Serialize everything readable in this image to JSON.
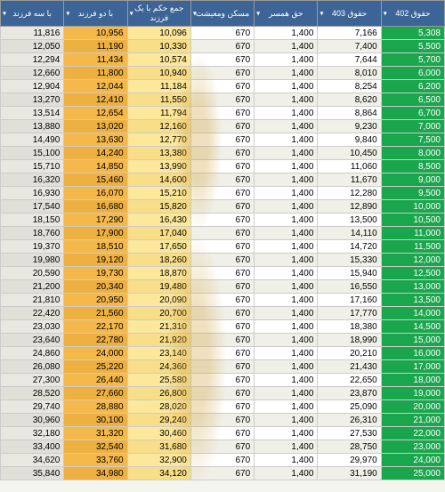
{
  "headers": [
    "حقوق 402",
    "حقوق 403",
    "حق همسر",
    "مسکن ومعیشت",
    "جمع حکم با یک فرزند",
    "با دو فرزند",
    "با سه فرزند"
  ],
  "colors": {
    "header_bg": "#3d6496",
    "header_fg": "#ffffff",
    "col1_bg": "#1aa64c",
    "col5_bg": "#fce79a",
    "col6_bg": "#f5b84a",
    "col7_bg": "#e8e8e0",
    "border": "#cccccc",
    "smudge": "#d4a84a"
  },
  "rows": [
    [
      "5,308",
      "7,166",
      "1,400",
      "670",
      "10,096",
      "10,956",
      "11,816"
    ],
    [
      "5,500",
      "7,400",
      "1,400",
      "670",
      "10,330",
      "11,190",
      "12,050"
    ],
    [
      "5,700",
      "7,644",
      "1,400",
      "670",
      "10,574",
      "11,434",
      "12,294"
    ],
    [
      "6,000",
      "8,010",
      "1,400",
      "670",
      "10,940",
      "11,800",
      "12,660"
    ],
    [
      "6,200",
      "8,254",
      "1,400",
      "670",
      "11,184",
      "12,044",
      "12,904"
    ],
    [
      "6,500",
      "8,620",
      "1,400",
      "670",
      "11,550",
      "12,410",
      "13,270"
    ],
    [
      "6,700",
      "8,864",
      "1,400",
      "670",
      "11,794",
      "12,654",
      "13,514"
    ],
    [
      "7,000",
      "9,230",
      "1,400",
      "670",
      "12,160",
      "13,020",
      "13,880"
    ],
    [
      "7,500",
      "9,840",
      "1,400",
      "670",
      "12,770",
      "13,630",
      "14,490"
    ],
    [
      "8,000",
      "10,450",
      "1,400",
      "670",
      "13,380",
      "14,240",
      "15,100"
    ],
    [
      "8,500",
      "11,060",
      "1,400",
      "670",
      "13,990",
      "14,850",
      "15,710"
    ],
    [
      "9,000",
      "11,670",
      "1,400",
      "670",
      "14,600",
      "15,460",
      "16,320"
    ],
    [
      "9,500",
      "12,280",
      "1,400",
      "670",
      "15,210",
      "16,070",
      "16,930"
    ],
    [
      "10,000",
      "12,890",
      "1,400",
      "670",
      "15,820",
      "16,680",
      "17,540"
    ],
    [
      "10,500",
      "13,500",
      "1,400",
      "670",
      "16,430",
      "17,290",
      "18,150"
    ],
    [
      "11,000",
      "14,110",
      "1,400",
      "670",
      "17,040",
      "17,900",
      "18,760"
    ],
    [
      "11,500",
      "14,720",
      "1,400",
      "670",
      "17,650",
      "18,510",
      "19,370"
    ],
    [
      "12,000",
      "15,330",
      "1,400",
      "670",
      "18,260",
      "19,120",
      "19,980"
    ],
    [
      "12,500",
      "15,940",
      "1,400",
      "670",
      "18,870",
      "19,730",
      "20,590"
    ],
    [
      "13,000",
      "16,550",
      "1,400",
      "670",
      "19,480",
      "20,340",
      "21,200"
    ],
    [
      "13,500",
      "17,160",
      "1,400",
      "670",
      "20,090",
      "20,950",
      "21,810"
    ],
    [
      "14,000",
      "17,770",
      "1,400",
      "670",
      "20,700",
      "21,560",
      "22,420"
    ],
    [
      "14,500",
      "18,380",
      "1,400",
      "670",
      "21,310",
      "22,170",
      "23,030"
    ],
    [
      "15,000",
      "18,990",
      "1,400",
      "670",
      "21,920",
      "22,780",
      "23,640"
    ],
    [
      "16,000",
      "20,210",
      "1,400",
      "670",
      "23,140",
      "24,000",
      "24,860"
    ],
    [
      "17,000",
      "21,430",
      "1,400",
      "670",
      "24,360",
      "25,220",
      "26,080"
    ],
    [
      "18,000",
      "22,650",
      "1,400",
      "670",
      "25,580",
      "26,440",
      "27,300"
    ],
    [
      "19,000",
      "23,870",
      "1,400",
      "670",
      "26,800",
      "27,660",
      "28,520"
    ],
    [
      "20,000",
      "25,090",
      "1,400",
      "670",
      "28,020",
      "28,880",
      "29,740"
    ],
    [
      "21,000",
      "26,310",
      "1,400",
      "670",
      "29,240",
      "30,100",
      "30,960"
    ],
    [
      "22,000",
      "27,530",
      "1,400",
      "670",
      "30,460",
      "31,320",
      "32,180"
    ],
    [
      "23,000",
      "28,750",
      "1,400",
      "670",
      "31,680",
      "32,540",
      "33,400"
    ],
    [
      "24,000",
      "29,970",
      "1,400",
      "670",
      "32,900",
      "33,760",
      "34,620"
    ],
    [
      "25,000",
      "31,190",
      "1,400",
      "670",
      "34,120",
      "34,980",
      "35,840"
    ]
  ]
}
